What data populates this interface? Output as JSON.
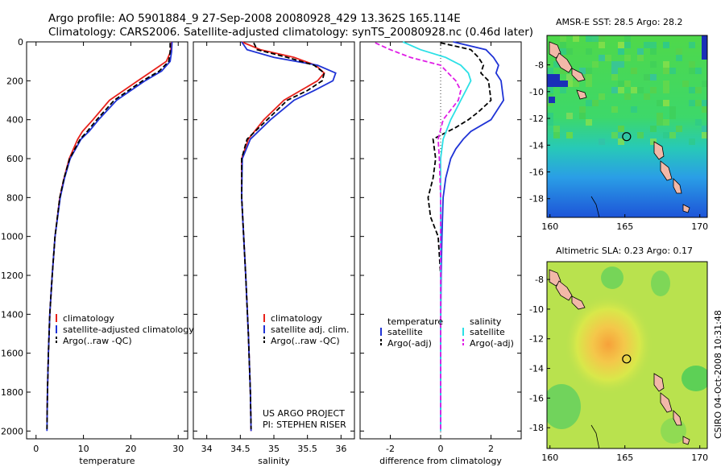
{
  "header": {
    "title_line1": "Argo profile: AO 5901884_9 27-Sep-2008 20080928_429 13.362S 165.114E",
    "title_line2": "Climatology: CARS2006. Satellite-adjusted climatology: synTS_20080928.nc (0.46d later)"
  },
  "credits": {
    "project": "US ARGO PROJECT",
    "pi": "PI: STEPHEN RISER",
    "stamp": "CSIRO 04-Oct-2008 10:31:48"
  },
  "colors": {
    "climatology": "#e8211a",
    "satellite": "#1f33d6",
    "argo": "#000000",
    "sal_satellite": "#2be0e6",
    "sal_argo": "#e01ee6"
  },
  "chart_data": [
    {
      "id": "temperature",
      "type": "line",
      "xlabel": "temperature",
      "ylabel": "",
      "xlim": [
        -2,
        32
      ],
      "ylim": [
        2040,
        0
      ],
      "xticks": [
        0,
        10,
        20,
        30
      ],
      "yticks": [
        0,
        200,
        400,
        600,
        800,
        1000,
        1200,
        1400,
        1600,
        1800,
        2000
      ],
      "legend": [
        "climatology",
        "satellite-adjusted climatology",
        "Argo(..raw -QC)"
      ],
      "series": [
        {
          "name": "climatology",
          "color": "#e8211a",
          "dash": "",
          "depth": [
            0,
            50,
            100,
            150,
            200,
            300,
            400,
            460,
            500,
            600,
            700,
            800,
            1000,
            1200,
            1400,
            1600,
            1800,
            1950
          ],
          "values": [
            28.6,
            28.4,
            27.5,
            24.5,
            21.5,
            15.5,
            12.0,
            9.8,
            8.8,
            7.0,
            5.9,
            5.0,
            4.0,
            3.4,
            2.9,
            2.6,
            2.4,
            2.3
          ]
        },
        {
          "name": "satellite-adjusted climatology",
          "color": "#1f33d6",
          "dash": "",
          "depth": [
            0,
            50,
            100,
            150,
            200,
            300,
            400,
            460,
            500,
            600,
            700,
            800,
            1000,
            1200,
            1400,
            1600,
            1800,
            2000
          ],
          "values": [
            28.7,
            28.6,
            28.3,
            26.5,
            23.0,
            17.0,
            13.2,
            11.2,
            9.5,
            7.2,
            6.0,
            5.1,
            4.0,
            3.4,
            2.9,
            2.6,
            2.4,
            2.3
          ]
        },
        {
          "name": "Argo(..raw -QC)",
          "color": "#000000",
          "dash": "6,3",
          "depth": [
            5,
            50,
            100,
            150,
            200,
            300,
            400,
            460,
            500,
            600,
            700,
            800,
            1000,
            1200,
            1400,
            1600,
            1800,
            1990
          ],
          "values": [
            28.3,
            28.3,
            28.0,
            26.0,
            22.5,
            16.5,
            12.8,
            10.8,
            9.3,
            7.1,
            5.9,
            5.0,
            4.0,
            3.4,
            2.9,
            2.6,
            2.4,
            2.3
          ]
        }
      ]
    },
    {
      "id": "salinity",
      "type": "line",
      "xlabel": "salinity",
      "xlim": [
        33.8,
        36.2
      ],
      "ylim": [
        2040,
        0
      ],
      "xticks": [
        34,
        34.5,
        35,
        35.5,
        36
      ],
      "xticklabels": [
        "34",
        "34.5",
        "35",
        "35.5",
        "36"
      ],
      "legend": [
        "climatology",
        "satellite adj. clim.",
        "Argo(..raw -QC)"
      ],
      "series": [
        {
          "name": "climatology",
          "color": "#e8211a",
          "dash": "",
          "depth": [
            0,
            40,
            80,
            120,
            160,
            200,
            250,
            300,
            400,
            500,
            600,
            800,
            1000,
            1200,
            1500,
            1800,
            2000
          ],
          "values": [
            34.52,
            34.8,
            35.3,
            35.62,
            35.75,
            35.65,
            35.4,
            35.15,
            34.85,
            34.62,
            34.52,
            34.52,
            34.55,
            34.58,
            34.62,
            34.65,
            34.66
          ]
        },
        {
          "name": "satellite adj. clim.",
          "color": "#1f33d6",
          "dash": "",
          "depth": [
            0,
            40,
            80,
            120,
            160,
            200,
            250,
            300,
            400,
            500,
            600,
            800,
            1000,
            1200,
            1500,
            1800,
            2000
          ],
          "values": [
            34.52,
            34.6,
            35.0,
            35.65,
            35.92,
            35.88,
            35.6,
            35.3,
            34.95,
            34.65,
            34.53,
            34.52,
            34.55,
            34.58,
            34.62,
            34.65,
            34.66
          ]
        },
        {
          "name": "Argo(..raw -QC)",
          "color": "#000000",
          "dash": "6,3",
          "depth": [
            5,
            40,
            80,
            120,
            160,
            200,
            250,
            300,
            400,
            500,
            600,
            800,
            1000,
            1200,
            1500,
            1800,
            1990
          ],
          "values": [
            34.7,
            34.75,
            35.2,
            35.6,
            35.75,
            35.72,
            35.5,
            35.2,
            34.9,
            34.6,
            34.52,
            34.52,
            34.55,
            34.58,
            34.62,
            34.65,
            34.66
          ]
        }
      ]
    },
    {
      "id": "difference",
      "type": "line",
      "xlabel": "difference from climatology",
      "xlim": [
        -3.2,
        3.2
      ],
      "ylim": [
        2040,
        0
      ],
      "xticks": [
        -2,
        0,
        2
      ],
      "legend_titles": [
        "temperature",
        "salinity"
      ],
      "legend": [
        "satellite",
        "Argo(-adj)",
        "satellite",
        "Argo(-adj)"
      ],
      "series": [
        {
          "name": "temperature satellite",
          "color": "#1f33d6",
          "dash": "",
          "depth": [
            0,
            40,
            80,
            120,
            160,
            200,
            300,
            400,
            460,
            500,
            550,
            600,
            700,
            800,
            1000,
            1200,
            1500,
            1800,
            2000
          ],
          "values": [
            0.5,
            1.8,
            2.1,
            2.3,
            2.2,
            2.4,
            2.5,
            2.0,
            1.2,
            0.9,
            0.6,
            0.4,
            0.2,
            0.1,
            0.05,
            0.02,
            0.0,
            0.0,
            0.0
          ]
        },
        {
          "name": "temperature Argo(-adj)",
          "color": "#000000",
          "dash": "6,3",
          "depth": [
            5,
            40,
            80,
            120,
            160,
            200,
            300,
            360,
            400,
            440,
            500,
            600,
            700,
            800,
            900,
            1000,
            1200,
            1500,
            1800,
            1990
          ],
          "values": [
            0.0,
            1.2,
            1.5,
            1.7,
            1.6,
            1.9,
            2.0,
            1.5,
            1.1,
            0.6,
            -0.3,
            -0.2,
            -0.3,
            -0.5,
            -0.4,
            -0.1,
            0.0,
            0.0,
            0.0,
            0.0
          ]
        },
        {
          "name": "salinity satellite",
          "color": "#2be0e6",
          "dash": "",
          "depth": [
            0,
            40,
            80,
            120,
            160,
            200,
            250,
            300,
            350,
            400,
            500,
            600,
            800,
            1000,
            1500,
            2000
          ],
          "values": [
            -1.5,
            -0.8,
            0.2,
            0.8,
            1.1,
            1.2,
            1.0,
            0.8,
            0.6,
            0.4,
            0.1,
            0.0,
            0.0,
            0.0,
            0.0,
            0.0
          ]
        },
        {
          "name": "salinity Argo(-adj)",
          "color": "#e01ee6",
          "dash": "6,3",
          "depth": [
            5,
            40,
            80,
            120,
            160,
            200,
            250,
            300,
            350,
            400,
            500,
            600,
            800,
            1000,
            1500,
            1990
          ],
          "values": [
            -2.6,
            -2.0,
            -1.2,
            0.0,
            0.3,
            0.6,
            0.8,
            0.7,
            0.4,
            0.1,
            -0.1,
            -0.05,
            0.0,
            0.0,
            0.0,
            0.0
          ]
        }
      ]
    },
    {
      "id": "sst_map",
      "type": "heatmap",
      "title": "AMSR-E SST: 28.5 Argo: 28.2",
      "xlim": [
        159.8,
        170.5
      ],
      "ylim": [
        -19.4,
        -5.8
      ],
      "xticks": [
        160,
        165,
        170
      ],
      "yticks": [
        -8,
        -10,
        -12,
        -14,
        -16,
        -18
      ],
      "argo_position": {
        "lon": 165.114,
        "lat": -13.362
      }
    },
    {
      "id": "sla_map",
      "type": "heatmap",
      "title": "Altimetric SLA: 0.23 Argo: 0.17",
      "xlim": [
        159.8,
        170.5
      ],
      "ylim": [
        -19.4,
        -6.8
      ],
      "xticks": [
        160,
        165,
        170
      ],
      "yticks": [
        -8,
        -10,
        -12,
        -14,
        -16,
        -18
      ],
      "argo_position": {
        "lon": 165.114,
        "lat": -13.362
      }
    }
  ]
}
